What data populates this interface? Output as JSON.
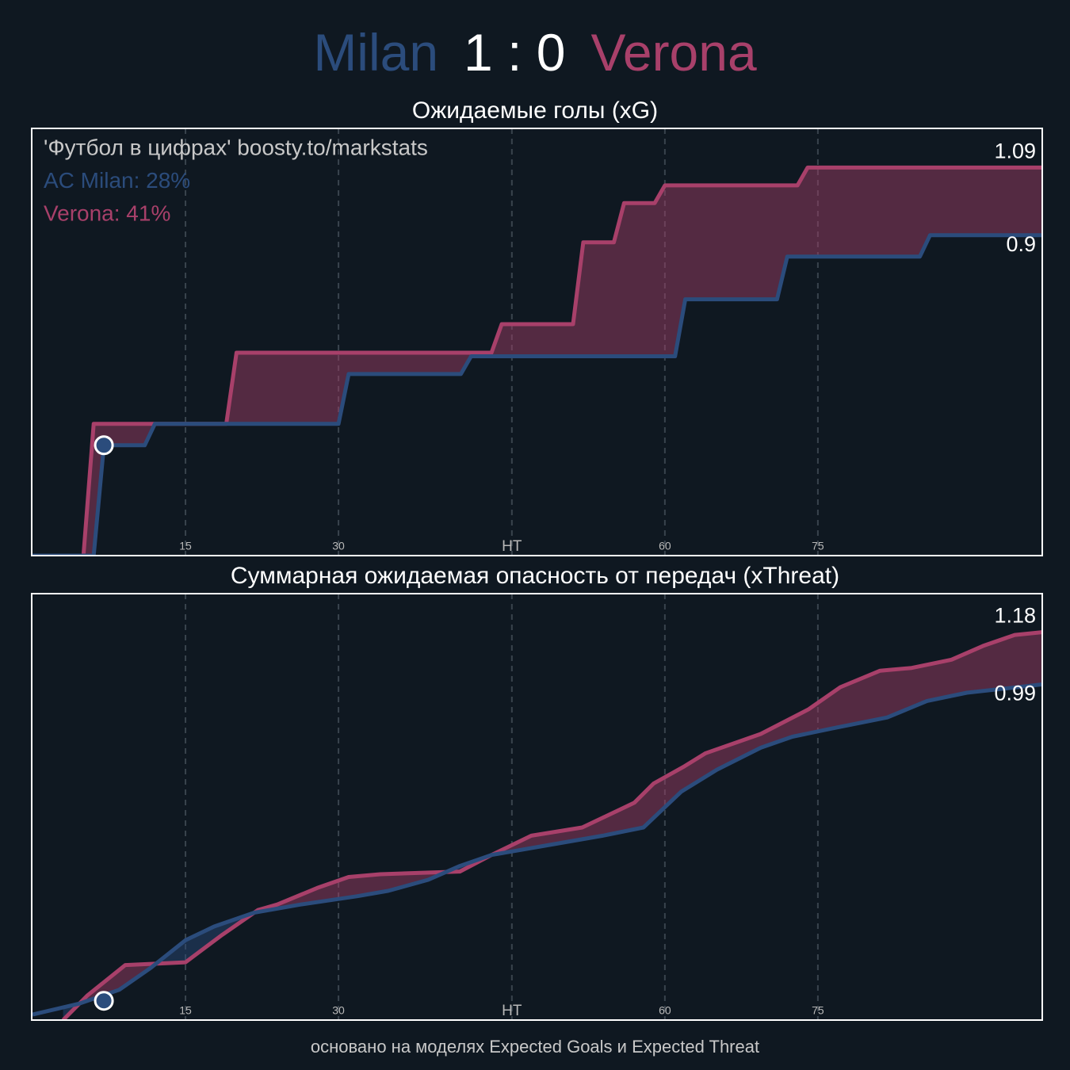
{
  "header": {
    "home": "Milan",
    "score": "1 : 0",
    "away": "Verona",
    "home_color": "#2b4c7c",
    "away_color": "#a8406a"
  },
  "footer": "основано на моделях Expected Goals и Expected Threat",
  "chart_data": [
    {
      "type": "line",
      "title": "Ожидаемые голы (xG)",
      "annotations": [
        {
          "text": "'Футбол в цифрах' boosty.to/markstats",
          "color": "#c8c8c8"
        },
        {
          "text": "AC Milan: 28%",
          "color": "#2b4c7c"
        },
        {
          "text": "Verona: 41%",
          "color": "#a8406a"
        }
      ],
      "xlim": [
        0,
        99
      ],
      "ylim": [
        0,
        1.2
      ],
      "xticks": [
        15,
        30,
        {
          "value": 47,
          "label": "HT"
        },
        {
          "value": 62,
          "label": "60"
        },
        {
          "value": 77,
          "label": "75"
        }
      ],
      "grid": true,
      "series": [
        {
          "color": "#a8406a",
          "x": [
            0,
            5,
            6,
            19,
            20,
            45,
            46,
            53,
            54,
            57,
            58,
            61,
            62,
            75,
            76,
            99
          ],
          "values": [
            0,
            0,
            0.37,
            0.37,
            0.57,
            0.57,
            0.65,
            0.65,
            0.88,
            0.88,
            0.99,
            0.99,
            1.04,
            1.04,
            1.09,
            1.09
          ]
        },
        {
          "color": "#2b4c7c",
          "x": [
            0,
            6,
            7,
            11,
            12,
            30,
            31,
            42,
            43,
            63,
            64,
            73,
            74,
            87,
            88,
            99
          ],
          "values": [
            0,
            0,
            0.31,
            0.31,
            0.37,
            0.37,
            0.51,
            0.51,
            0.56,
            0.56,
            0.72,
            0.72,
            0.84,
            0.84,
            0.9,
            0.9
          ]
        }
      ],
      "goals": [
        {
          "x": 7,
          "y": 0.31,
          "color": "#2b4c7c"
        }
      ]
    },
    {
      "type": "line",
      "title": "Суммарная ожидаемая опасность от передач (xThreat)",
      "xlim": [
        0,
        99
      ],
      "ylim": [
        -0.23,
        1.32
      ],
      "xticks": [
        15,
        30,
        {
          "value": 47,
          "label": "HT"
        },
        {
          "value": 62,
          "label": "60"
        },
        {
          "value": 77,
          "label": "75"
        }
      ],
      "grid": true,
      "series": [
        {
          "color": "#a8406a",
          "x": [
            3,
            5.4,
            9.1,
            15,
            18.6,
            22.1,
            24,
            27.9,
            31,
            34.1,
            41.9,
            45,
            48.9,
            53.9,
            59,
            60.9,
            63.8,
            66,
            71.4,
            76.1,
            79.2,
            83.1,
            86.2,
            90.1,
            93.2,
            96.3,
            99
          ],
          "values": [
            -0.23,
            -0.14,
            -0.03,
            -0.02,
            0.08,
            0.17,
            0.19,
            0.25,
            0.29,
            0.3,
            0.31,
            0.37,
            0.44,
            0.47,
            0.56,
            0.63,
            0.69,
            0.74,
            0.81,
            0.9,
            0.98,
            1.04,
            1.05,
            1.08,
            1.13,
            1.17,
            1.18
          ]
        },
        {
          "color": "#2b4c7c",
          "x": [
            0,
            4.6,
            8.5,
            11.6,
            15,
            17.8,
            21.7,
            26.3,
            31.8,
            34.9,
            38.8,
            41.9,
            45,
            51.2,
            55.9,
            59.9,
            63.6,
            67.1,
            71.4,
            74.5,
            78.4,
            83.8,
            87.7,
            91.6,
            99
          ],
          "values": [
            -0.21,
            -0.17,
            -0.12,
            -0.04,
            0.06,
            0.11,
            0.16,
            0.19,
            0.22,
            0.24,
            0.28,
            0.33,
            0.37,
            0.41,
            0.44,
            0.47,
            0.6,
            0.68,
            0.76,
            0.8,
            0.83,
            0.87,
            0.93,
            0.96,
            0.99
          ]
        }
      ],
      "goals": [
        {
          "x": 7,
          "y": -0.16,
          "color": "#2b4c7c"
        }
      ]
    }
  ]
}
